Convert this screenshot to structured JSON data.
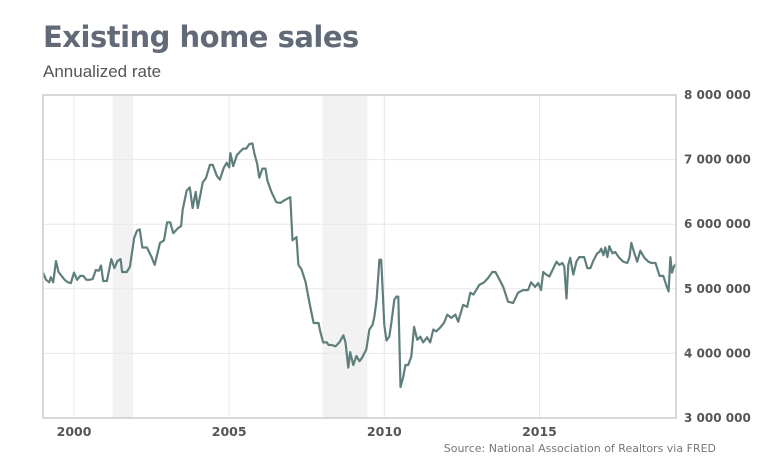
{
  "chart_data": {
    "type": "line",
    "title": "Existing home sales",
    "subtitle": "Annualized rate",
    "source": "Source: National Association of Realtors via FRED",
    "xlabel": "",
    "ylabel": "",
    "xlim": [
      1999.0,
      2019.4
    ],
    "ylim": [
      3000000,
      8000000
    ],
    "x_ticks": [
      2000,
      2005,
      2010,
      2015
    ],
    "x_tick_labels": [
      "2000",
      "2005",
      "2010",
      "2015"
    ],
    "y_ticks": [
      3000000,
      4000000,
      5000000,
      6000000,
      7000000,
      8000000
    ],
    "y_tick_labels": [
      "3 000 000",
      "4 000 000",
      "5 000 000",
      "6 000 000",
      "7 000 000",
      "8 000 000"
    ],
    "grid": true,
    "recessions": [
      [
        2001.25,
        2001.9
      ],
      [
        2008.0,
        2009.45
      ]
    ],
    "colors": {
      "line": "#5f7f7d",
      "grid": "#e8e8e8",
      "recession": "#f2f2f2",
      "axis": "#cccccc"
    },
    "series": [
      {
        "name": "Existing home sales",
        "points": [
          [
            1999.0,
            5250000
          ],
          [
            1999.1,
            5140000
          ],
          [
            1999.2,
            5100000
          ],
          [
            1999.25,
            5180000
          ],
          [
            1999.33,
            5100000
          ],
          [
            1999.42,
            5430000
          ],
          [
            1999.5,
            5260000
          ],
          [
            1999.6,
            5200000
          ],
          [
            1999.7,
            5140000
          ],
          [
            1999.8,
            5100000
          ],
          [
            1999.9,
            5090000
          ],
          [
            2000.0,
            5250000
          ],
          [
            2000.1,
            5140000
          ],
          [
            2000.2,
            5200000
          ],
          [
            2000.3,
            5200000
          ],
          [
            2000.4,
            5140000
          ],
          [
            2000.5,
            5140000
          ],
          [
            2000.6,
            5150000
          ],
          [
            2000.7,
            5290000
          ],
          [
            2000.8,
            5280000
          ],
          [
            2000.87,
            5360000
          ],
          [
            2000.94,
            5120000
          ],
          [
            2001.06,
            5120000
          ],
          [
            2001.2,
            5460000
          ],
          [
            2001.3,
            5320000
          ],
          [
            2001.4,
            5430000
          ],
          [
            2001.5,
            5460000
          ],
          [
            2001.55,
            5260000
          ],
          [
            2001.7,
            5260000
          ],
          [
            2001.8,
            5340000
          ],
          [
            2001.94,
            5790000
          ],
          [
            2002.03,
            5900000
          ],
          [
            2002.12,
            5920000
          ],
          [
            2002.2,
            5640000
          ],
          [
            2002.35,
            5640000
          ],
          [
            2002.5,
            5490000
          ],
          [
            2002.6,
            5370000
          ],
          [
            2002.77,
            5710000
          ],
          [
            2002.9,
            5750000
          ],
          [
            2003.0,
            6030000
          ],
          [
            2003.1,
            6030000
          ],
          [
            2003.2,
            5860000
          ],
          [
            2003.35,
            5940000
          ],
          [
            2003.45,
            5970000
          ],
          [
            2003.5,
            6220000
          ],
          [
            2003.63,
            6520000
          ],
          [
            2003.73,
            6570000
          ],
          [
            2003.82,
            6250000
          ],
          [
            2003.92,
            6500000
          ],
          [
            2003.99,
            6250000
          ],
          [
            2004.15,
            6650000
          ],
          [
            2004.25,
            6710000
          ],
          [
            2004.38,
            6920000
          ],
          [
            2004.47,
            6920000
          ],
          [
            2004.6,
            6750000
          ],
          [
            2004.7,
            6690000
          ],
          [
            2004.83,
            6880000
          ],
          [
            2004.92,
            6950000
          ],
          [
            2005.0,
            6880000
          ],
          [
            2005.04,
            7100000
          ],
          [
            2005.13,
            6900000
          ],
          [
            2005.25,
            7070000
          ],
          [
            2005.35,
            7120000
          ],
          [
            2005.45,
            7170000
          ],
          [
            2005.55,
            7170000
          ],
          [
            2005.65,
            7240000
          ],
          [
            2005.75,
            7250000
          ],
          [
            2005.81,
            7100000
          ],
          [
            2005.9,
            6940000
          ],
          [
            2005.97,
            6720000
          ],
          [
            2006.07,
            6860000
          ],
          [
            2006.17,
            6860000
          ],
          [
            2006.23,
            6680000
          ],
          [
            2006.36,
            6500000
          ],
          [
            2006.52,
            6340000
          ],
          [
            2006.65,
            6330000
          ],
          [
            2006.78,
            6370000
          ],
          [
            2006.97,
            6420000
          ],
          [
            2007.04,
            5750000
          ],
          [
            2007.17,
            5800000
          ],
          [
            2007.23,
            5370000
          ],
          [
            2007.33,
            5300000
          ],
          [
            2007.46,
            5110000
          ],
          [
            2007.59,
            4780000
          ],
          [
            2007.72,
            4470000
          ],
          [
            2007.88,
            4470000
          ],
          [
            2007.94,
            4330000
          ],
          [
            2008.03,
            4170000
          ],
          [
            2008.15,
            4170000
          ],
          [
            2008.2,
            4130000
          ],
          [
            2008.3,
            4130000
          ],
          [
            2008.43,
            4110000
          ],
          [
            2008.55,
            4170000
          ],
          [
            2008.68,
            4280000
          ],
          [
            2008.75,
            4170000
          ],
          [
            2008.84,
            3780000
          ],
          [
            2008.9,
            4020000
          ],
          [
            2009.0,
            3820000
          ],
          [
            2009.1,
            3960000
          ],
          [
            2009.2,
            3880000
          ],
          [
            2009.29,
            3940000
          ],
          [
            2009.42,
            4060000
          ],
          [
            2009.52,
            4370000
          ],
          [
            2009.62,
            4440000
          ],
          [
            2009.68,
            4570000
          ],
          [
            2009.75,
            4830000
          ],
          [
            2009.84,
            5450000
          ],
          [
            2009.9,
            5450000
          ],
          [
            2010.0,
            4440000
          ],
          [
            2010.07,
            4200000
          ],
          [
            2010.16,
            4260000
          ],
          [
            2010.23,
            4490000
          ],
          [
            2010.32,
            4830000
          ],
          [
            2010.39,
            4880000
          ],
          [
            2010.45,
            4880000
          ],
          [
            2010.52,
            3480000
          ],
          [
            2010.61,
            3640000
          ],
          [
            2010.68,
            3820000
          ],
          [
            2010.77,
            3820000
          ],
          [
            2010.87,
            3950000
          ],
          [
            2010.96,
            4410000
          ],
          [
            2011.06,
            4210000
          ],
          [
            2011.16,
            4260000
          ],
          [
            2011.25,
            4170000
          ],
          [
            2011.38,
            4250000
          ],
          [
            2011.48,
            4170000
          ],
          [
            2011.58,
            4370000
          ],
          [
            2011.67,
            4340000
          ],
          [
            2011.8,
            4400000
          ],
          [
            2011.93,
            4480000
          ],
          [
            2012.03,
            4600000
          ],
          [
            2012.16,
            4550000
          ],
          [
            2012.29,
            4600000
          ],
          [
            2012.38,
            4490000
          ],
          [
            2012.54,
            4750000
          ],
          [
            2012.67,
            4720000
          ],
          [
            2012.77,
            4940000
          ],
          [
            2012.87,
            4910000
          ],
          [
            2013.06,
            5060000
          ],
          [
            2013.22,
            5100000
          ],
          [
            2013.35,
            5170000
          ],
          [
            2013.48,
            5260000
          ],
          [
            2013.58,
            5260000
          ],
          [
            2013.67,
            5180000
          ],
          [
            2013.83,
            5030000
          ],
          [
            2013.99,
            4800000
          ],
          [
            2014.15,
            4780000
          ],
          [
            2014.31,
            4940000
          ],
          [
            2014.47,
            4980000
          ],
          [
            2014.63,
            4980000
          ],
          [
            2014.73,
            5100000
          ],
          [
            2014.86,
            5030000
          ],
          [
            2014.96,
            5090000
          ],
          [
            2015.05,
            4980000
          ],
          [
            2015.12,
            5260000
          ],
          [
            2015.22,
            5220000
          ],
          [
            2015.32,
            5190000
          ],
          [
            2015.45,
            5320000
          ],
          [
            2015.55,
            5420000
          ],
          [
            2015.64,
            5370000
          ],
          [
            2015.74,
            5400000
          ],
          [
            2015.8,
            5340000
          ],
          [
            2015.87,
            4850000
          ],
          [
            2015.93,
            5370000
          ],
          [
            2015.99,
            5480000
          ],
          [
            2016.09,
            5220000
          ],
          [
            2016.19,
            5420000
          ],
          [
            2016.28,
            5490000
          ],
          [
            2016.44,
            5490000
          ],
          [
            2016.54,
            5320000
          ],
          [
            2016.64,
            5320000
          ],
          [
            2016.73,
            5430000
          ],
          [
            2016.86,
            5550000
          ],
          [
            2016.93,
            5570000
          ],
          [
            2016.99,
            5620000
          ],
          [
            2017.06,
            5520000
          ],
          [
            2017.12,
            5640000
          ],
          [
            2017.19,
            5490000
          ],
          [
            2017.25,
            5660000
          ],
          [
            2017.35,
            5550000
          ],
          [
            2017.44,
            5570000
          ],
          [
            2017.57,
            5480000
          ],
          [
            2017.7,
            5420000
          ],
          [
            2017.83,
            5400000
          ],
          [
            2017.9,
            5490000
          ],
          [
            2017.96,
            5710000
          ],
          [
            2018.06,
            5550000
          ],
          [
            2018.15,
            5420000
          ],
          [
            2018.25,
            5590000
          ],
          [
            2018.38,
            5480000
          ],
          [
            2018.51,
            5420000
          ],
          [
            2018.61,
            5400000
          ],
          [
            2018.74,
            5400000
          ],
          [
            2018.87,
            5200000
          ],
          [
            2018.99,
            5200000
          ],
          [
            2019.09,
            5050000
          ],
          [
            2019.16,
            4960000
          ],
          [
            2019.22,
            5490000
          ],
          [
            2019.27,
            5250000
          ],
          [
            2019.33,
            5340000
          ],
          [
            2019.39,
            5380000
          ]
        ]
      }
    ]
  }
}
